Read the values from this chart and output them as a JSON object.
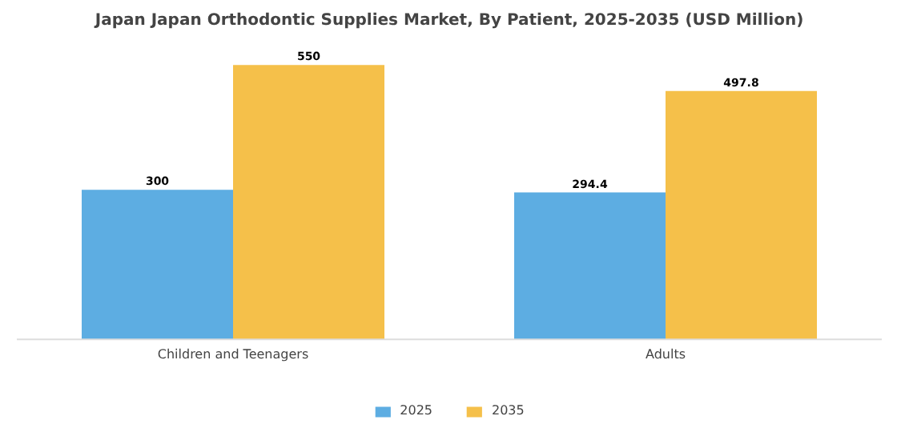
{
  "chart_data": {
    "type": "bar",
    "title": "Japan Japan Orthodontic Supplies Market, By Patient, 2025-2035 (USD Million)",
    "categories": [
      "Children and Teenagers",
      "Adults"
    ],
    "series": [
      {
        "name": "2025",
        "color": "#5dade2",
        "values": [
          300,
          294.4
        ]
      },
      {
        "name": "2035",
        "color": "#f5c04a",
        "values": [
          550,
          497.8
        ]
      }
    ],
    "data_labels": true,
    "grid": false,
    "legend": "bottom"
  }
}
